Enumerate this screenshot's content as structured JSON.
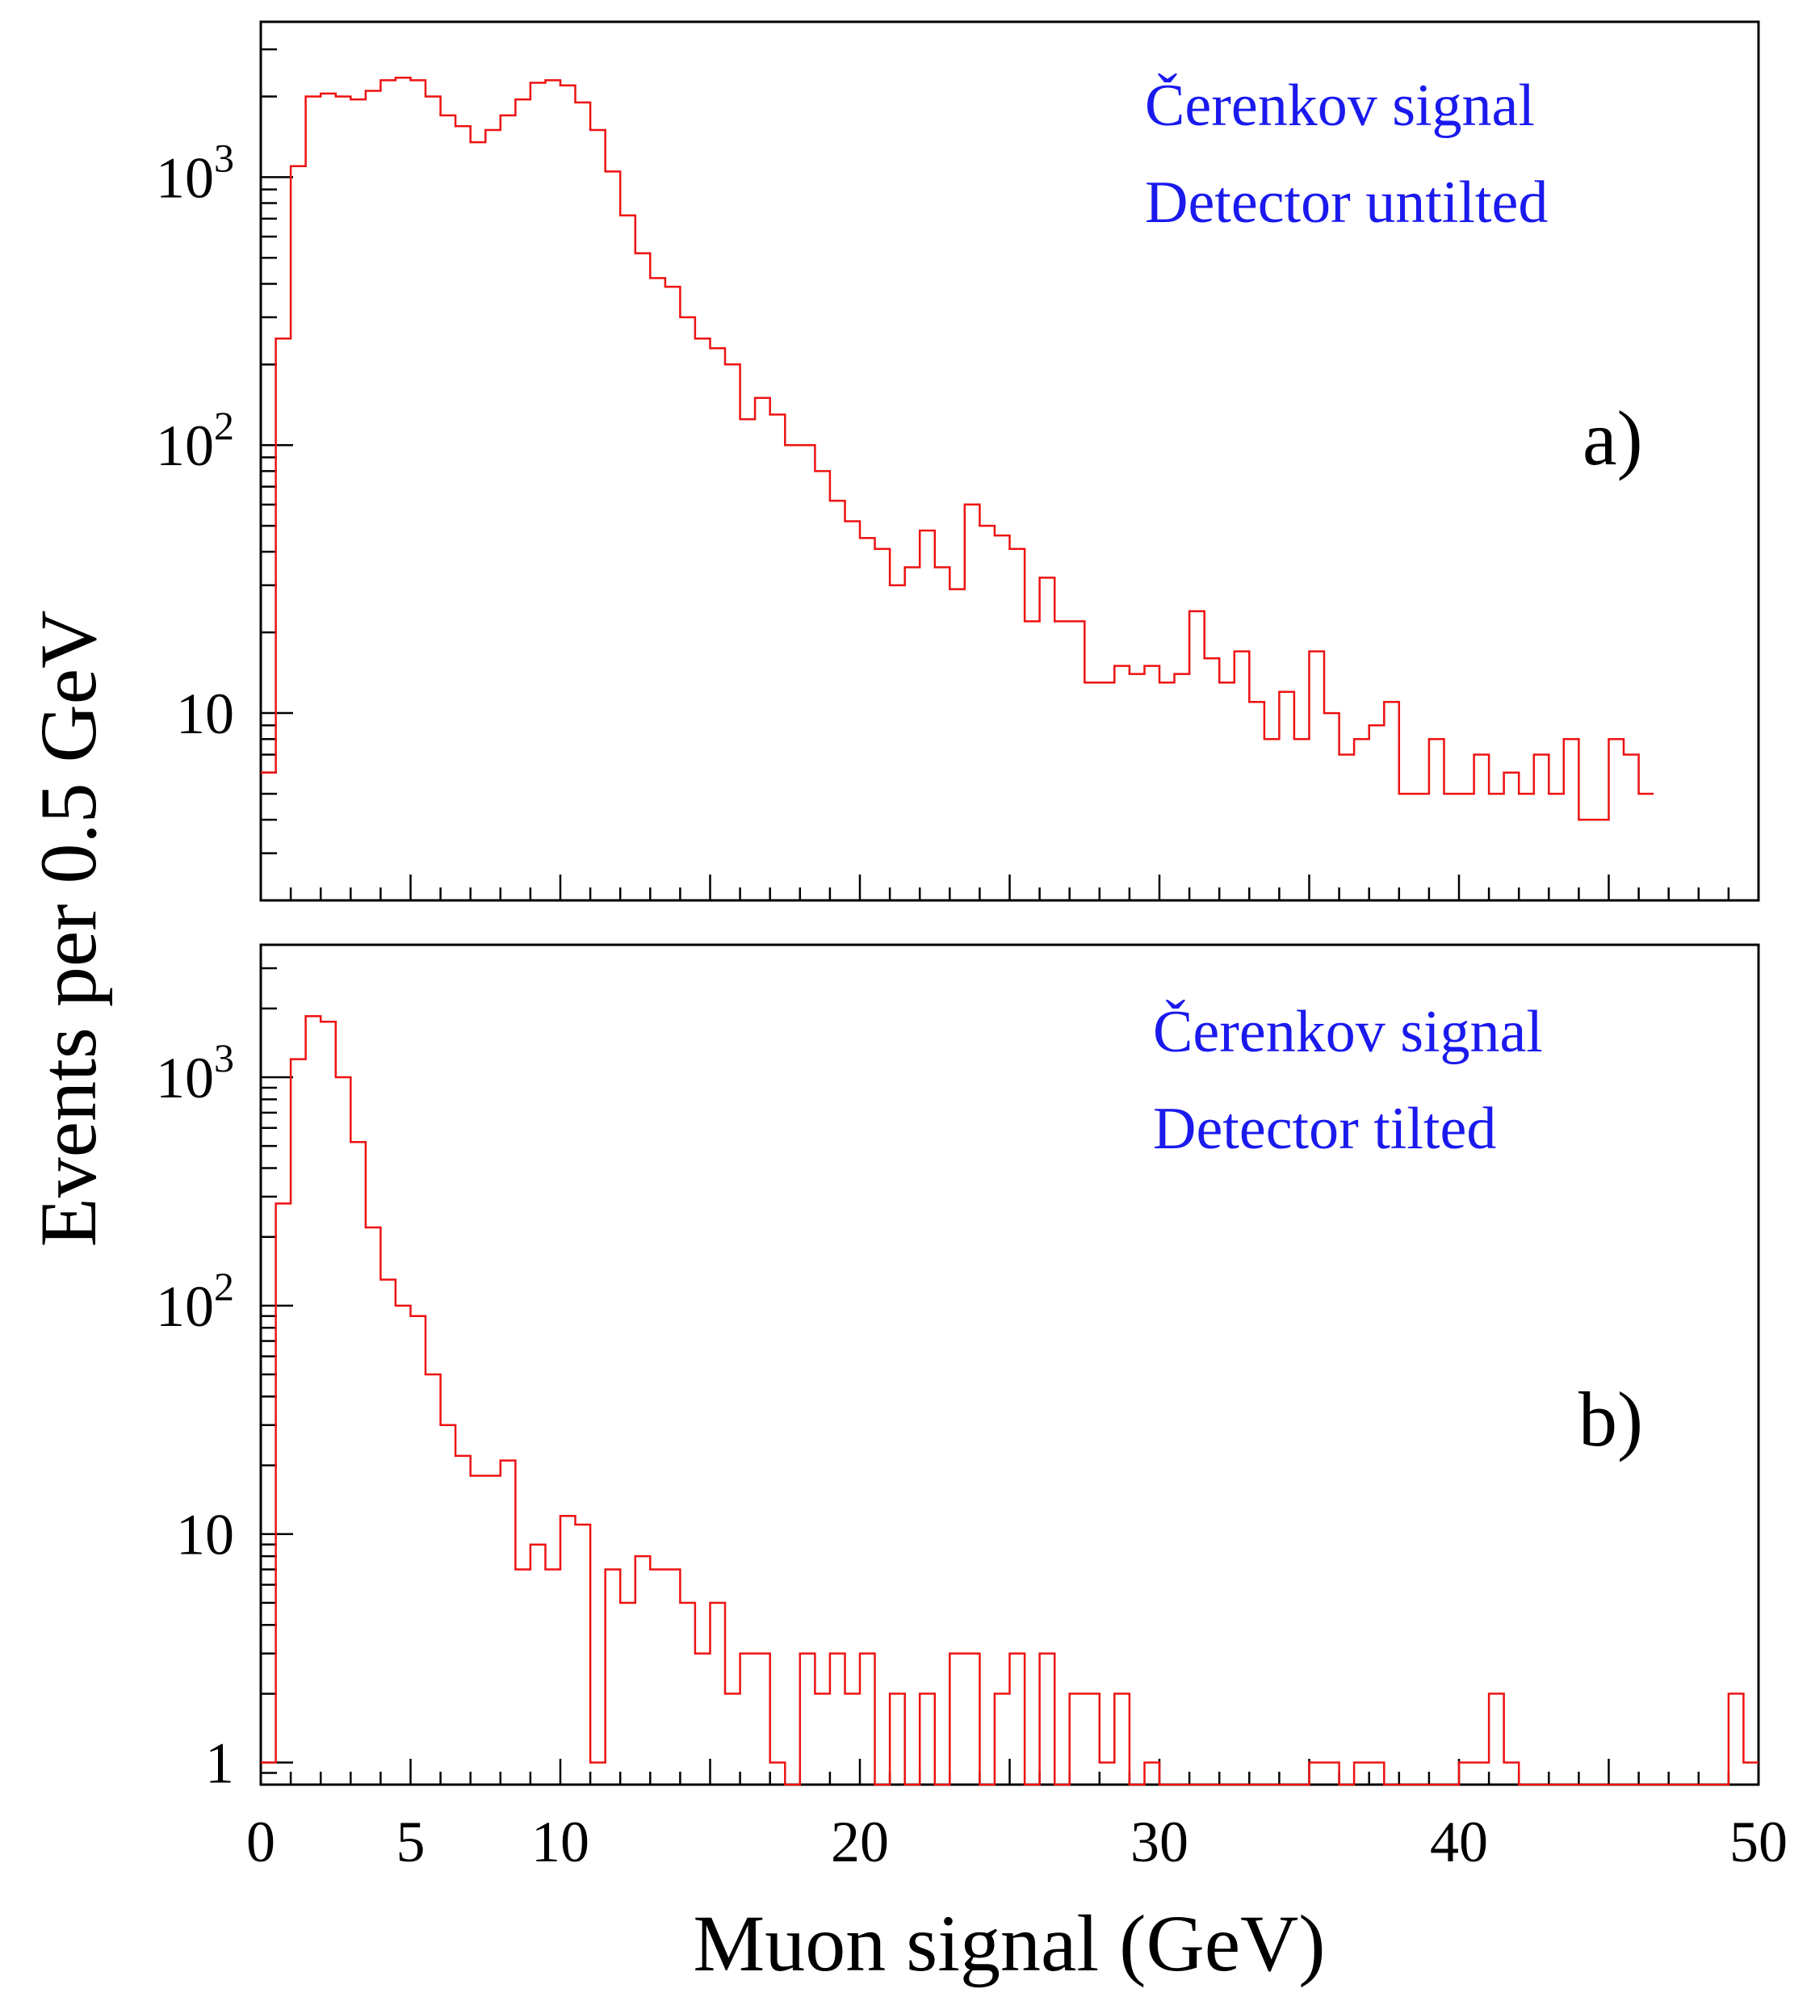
{
  "chart_data": [
    {
      "type": "histogram",
      "panel_label": "a)",
      "annotations": [
        "Čerenkov signal",
        "Detector untilted"
      ],
      "xlim": [
        0,
        50
      ],
      "ylim": [
        2,
        3800
      ],
      "yscale": "log",
      "ylabel": "Events per 0.5 GeV",
      "bin_width": 0.5,
      "line_color": "#ee1111",
      "annotation_color": "#1a1aee",
      "y_tick_labels": [
        {
          "value": 10,
          "base": "10",
          "exp": ""
        },
        {
          "value": 100,
          "base": "10",
          "exp": "2"
        },
        {
          "value": 1000,
          "base": "10",
          "exp": "3"
        }
      ],
      "values": [
        6,
        250,
        1100,
        2000,
        2050,
        2000,
        1950,
        2100,
        2300,
        2350,
        2300,
        2000,
        1700,
        1550,
        1350,
        1500,
        1700,
        1950,
        2250,
        2300,
        2200,
        1900,
        1500,
        1050,
        720,
        520,
        420,
        390,
        300,
        250,
        230,
        200,
        125,
        150,
        130,
        100,
        100,
        80,
        62,
        52,
        45,
        41,
        30,
        35,
        48,
        35,
        29,
        60,
        50,
        46,
        41,
        22,
        32,
        22,
        22,
        13,
        13,
        15,
        14,
        15,
        13,
        14,
        24,
        16,
        13,
        17,
        11,
        8,
        12,
        8,
        17,
        10,
        7,
        8,
        9,
        11,
        5,
        5,
        8,
        5,
        5,
        7,
        5,
        6,
        5,
        7,
        5,
        8,
        4,
        4,
        8,
        7,
        5
      ]
    },
    {
      "type": "histogram",
      "panel_label": "b)",
      "annotations": [
        "Čerenkov signal",
        "Detector tilted"
      ],
      "xlim": [
        0,
        50
      ],
      "ylim": [
        0.8,
        3800
      ],
      "yscale": "log",
      "ylabel": "Events per 0.5 GeV",
      "xlabel": "Muon signal (GeV)",
      "bin_width": 0.5,
      "line_color": "#ee1111",
      "annotation_color": "#1a1aee",
      "x_tick_labels": [
        "0",
        "5",
        "10",
        "20",
        "30",
        "40",
        "50"
      ],
      "x_tick_values": [
        0,
        5,
        10,
        20,
        30,
        40,
        50
      ],
      "y_tick_labels": [
        {
          "value": 1,
          "base": "1",
          "exp": ""
        },
        {
          "value": 10,
          "base": "10",
          "exp": ""
        },
        {
          "value": 100,
          "base": "10",
          "exp": "2"
        },
        {
          "value": 1000,
          "base": "10",
          "exp": "3"
        }
      ],
      "values": [
        1,
        280,
        1200,
        1850,
        1750,
        1000,
        520,
        220,
        130,
        100,
        90,
        50,
        30,
        22,
        18,
        18,
        21,
        7,
        9,
        7,
        12,
        11,
        1,
        7,
        5,
        8,
        7,
        7,
        5,
        3,
        5,
        2,
        3,
        3,
        1,
        0,
        3,
        2,
        3,
        2,
        3,
        0,
        2,
        0,
        2,
        0,
        3,
        3,
        0,
        2,
        3,
        0,
        3,
        0,
        2,
        2,
        1,
        2,
        0,
        1,
        0,
        0,
        0,
        0,
        0,
        0,
        0,
        0,
        0,
        0,
        1,
        1,
        0,
        1,
        1,
        0,
        0,
        0,
        0,
        0,
        1,
        1,
        2,
        1,
        0,
        0,
        0,
        0,
        0,
        0,
        0,
        0,
        0,
        0,
        0,
        0,
        0,
        0,
        2,
        1
      ]
    }
  ]
}
